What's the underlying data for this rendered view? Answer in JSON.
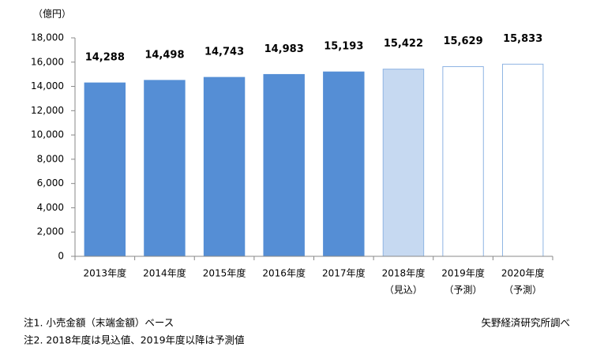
{
  "chart_data": {
    "type": "bar",
    "y_unit": "（億円）",
    "categories": [
      "2013年度",
      "2014年度",
      "2015年度",
      "2016年度",
      "2017年度",
      "2018年度",
      "2019年度",
      "2020年度"
    ],
    "category_notes": [
      null,
      null,
      null,
      null,
      null,
      "（見込）",
      "（予測）",
      "（予測）"
    ],
    "values": [
      14288,
      14498,
      14743,
      14983,
      15193,
      15422,
      15629,
      15833
    ],
    "value_labels": [
      "14,288",
      "14,498",
      "14,743",
      "14,983",
      "15,193",
      "15,422",
      "15,629",
      "15,833"
    ],
    "colors": [
      "#558ed5",
      "#558ed5",
      "#558ed5",
      "#558ed5",
      "#558ed5",
      "#c6d9f1",
      "#ffffff",
      "#ffffff"
    ],
    "edge_colors": [
      "#558ed5",
      "#558ed5",
      "#558ed5",
      "#558ed5",
      "#558ed5",
      "#8eb4e3",
      "#8eb4e3",
      "#8eb4e3"
    ],
    "ylim": [
      0,
      18000
    ],
    "yticks": [
      0,
      {
        "value": 2000,
        "label": "2,000"
      },
      {
        "value": 4000,
        "label": "4,000"
      },
      {
        "value": 6000,
        "label": "6,000"
      },
      {
        "value": 8000,
        "label": "8,000"
      },
      {
        "value": 10000,
        "label": "10,000"
      },
      {
        "value": 12000,
        "label": "12,000"
      },
      {
        "value": 14000,
        "label": "14,000"
      },
      {
        "value": 16000,
        "label": "16,000"
      },
      {
        "value": 18000,
        "label": "18,000"
      }
    ],
    "grid": false,
    "notes": [
      "注1. 小売金額（末端金額）ベース",
      "注2. 2018年度は見込値、2019年度以降は予測値"
    ],
    "source": "矢野経済研究所調べ"
  }
}
